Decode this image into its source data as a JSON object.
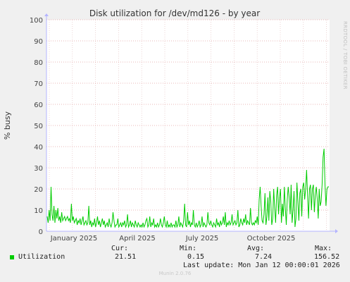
{
  "chart_data": {
    "type": "line",
    "title": "Disk utilization for /dev/md126 - by year",
    "ylabel": "% busy",
    "ylim": [
      0,
      100
    ],
    "yticks": [
      0,
      10,
      20,
      30,
      40,
      50,
      60,
      70,
      80,
      90,
      100
    ],
    "xticks": [
      "January 2025",
      "April 2025",
      "July 2025",
      "October 2025"
    ],
    "grid": true,
    "series": [
      {
        "name": "Utilization",
        "color": "#00cc00",
        "values": [
          7,
          4,
          10,
          5,
          21,
          8,
          5,
          12,
          4,
          10,
          6,
          11,
          5,
          7,
          4,
          9,
          5,
          6,
          7,
          5,
          6,
          7,
          5,
          6,
          4,
          13,
          5,
          7,
          4,
          5,
          6,
          3,
          5,
          4,
          6,
          3,
          5,
          7,
          3,
          4,
          5,
          3,
          4,
          12,
          3,
          5,
          2,
          4,
          3,
          6,
          2,
          4,
          7,
          3,
          5,
          2,
          4,
          6,
          3,
          5,
          2,
          3,
          4,
          2,
          6,
          3,
          2,
          4,
          9,
          5,
          2,
          3,
          3,
          6,
          2,
          3,
          4,
          2,
          4,
          3,
          5,
          2,
          3,
          8,
          2,
          3,
          5,
          2,
          4,
          3,
          2,
          5,
          3,
          2,
          4,
          3,
          2,
          3,
          2,
          4,
          2,
          3,
          5,
          6,
          2,
          3,
          7,
          2,
          4,
          3,
          6,
          2,
          3,
          2,
          4,
          2,
          3,
          6,
          3,
          2,
          4,
          7,
          3,
          2,
          5,
          2,
          3,
          2,
          4,
          2,
          3,
          3,
          2,
          5,
          2,
          3,
          7,
          2,
          4,
          3,
          2,
          5,
          13,
          3,
          2,
          9,
          3,
          5,
          2,
          4,
          3,
          10,
          3,
          2,
          4,
          2,
          3,
          5,
          2,
          3,
          7,
          2,
          4,
          3,
          2,
          3,
          9,
          4,
          3,
          5,
          3,
          2,
          4,
          3,
          2,
          6,
          3,
          4,
          2,
          5,
          3,
          4,
          7,
          3,
          9,
          2,
          4,
          3,
          5,
          3,
          4,
          8,
          3,
          4,
          5,
          3,
          4,
          10,
          2,
          3,
          6,
          4,
          3,
          6,
          4,
          8,
          3,
          5,
          4,
          3,
          11,
          4,
          3,
          4,
          3,
          5,
          4,
          7,
          3,
          15,
          21,
          12,
          5,
          4,
          8,
          18,
          3,
          7,
          16,
          5,
          19,
          14,
          3,
          6,
          20,
          11,
          4,
          17,
          21,
          8,
          16,
          20,
          4,
          13,
          7,
          21,
          11,
          3,
          15,
          21,
          16,
          8,
          22,
          4,
          10,
          19,
          2,
          6,
          23,
          14,
          5,
          18,
          20,
          7,
          21,
          23,
          15,
          20,
          29,
          17,
          6,
          20,
          22,
          10,
          20,
          22,
          9,
          17,
          21,
          15,
          6,
          20,
          12,
          14,
          22,
          35,
          39,
          22,
          12,
          20,
          21,
          21
        ]
      }
    ],
    "legend": {
      "series_label": "Utilization",
      "cur_label": "Cur:",
      "cur": "21.51",
      "min_label": "Min:",
      "min": "0.15",
      "avg_label": "Avg:",
      "avg": "7.24",
      "max_label": "Max:",
      "max": "156.52",
      "last_update": "Last update: Mon Jan 12 00:00:01 2026"
    }
  },
  "side_label": "RRDTOOL / TOBI OETIKER",
  "footer": "Munin 2.0.76"
}
